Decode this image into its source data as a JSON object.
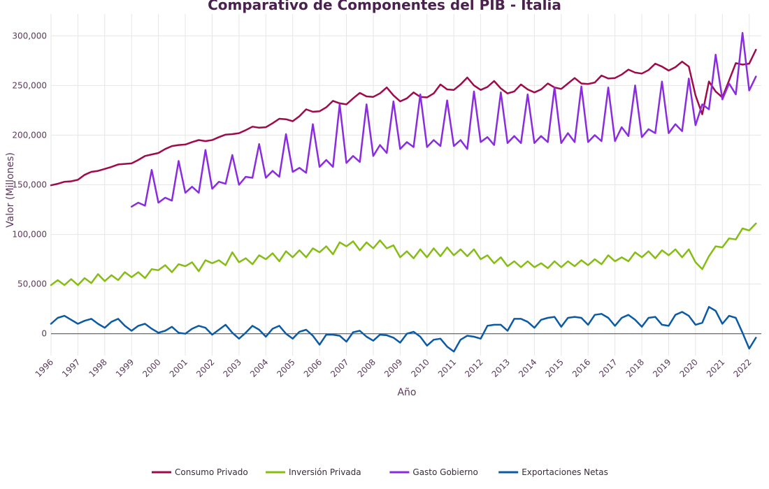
{
  "chart_data": {
    "type": "line",
    "title": "Comparativo de Componentes del PIB - Italia",
    "xlabel": "Año",
    "ylabel": "Valor (Millones)",
    "xlim": [
      1996.0,
      2022.45
    ],
    "ylim": [
      -22000,
      322000
    ],
    "x_ticks": [
      "1996",
      "1997",
      "1998",
      "1999",
      "2000",
      "2001",
      "2002",
      "2003",
      "2004",
      "2005",
      "2006",
      "2007",
      "2008",
      "2009",
      "2010",
      "2011",
      "2012",
      "2013",
      "2014",
      "2015",
      "2016",
      "2017",
      "2018",
      "2019",
      "2020",
      "2021",
      "2022"
    ],
    "y_ticks": [
      0,
      50000,
      100000,
      150000,
      200000,
      250000,
      300000
    ],
    "y_tick_labels": [
      "0",
      "50,000",
      "100,000",
      "150,000",
      "200,000",
      "250,000",
      "300,000"
    ],
    "grid": true,
    "legend_position": "bottom",
    "series": [
      {
        "name": "Consumo Privado",
        "color": "#a0094a",
        "start": 1996.0,
        "step": 0.25,
        "values": [
          149500,
          151000,
          153000,
          153500,
          155000,
          160000,
          163000,
          164000,
          166000,
          168000,
          170500,
          171000,
          171500,
          175000,
          179000,
          180500,
          182000,
          186000,
          189000,
          190000,
          190500,
          193000,
          195000,
          194000,
          195000,
          198000,
          200500,
          201000,
          202000,
          205000,
          208500,
          207500,
          208000,
          212000,
          216500,
          216000,
          214000,
          219000,
          226000,
          223500,
          224000,
          228000,
          234500,
          232000,
          231000,
          237000,
          242500,
          239000,
          238500,
          242000,
          248000,
          240000,
          234000,
          237000,
          243000,
          238500,
          238000,
          242000,
          251000,
          246000,
          245500,
          251000,
          258000,
          250000,
          245500,
          248500,
          254500,
          247000,
          242000,
          244000,
          251000,
          246000,
          243000,
          246000,
          252000,
          248000,
          246500,
          252000,
          257500,
          252000,
          251500,
          253000,
          260000,
          257000,
          257500,
          261000,
          266000,
          263000,
          262000,
          265500,
          272000,
          269000,
          265000,
          268500,
          274000,
          269000,
          240000,
          221000,
          254000,
          244000,
          238000,
          255000,
          272500,
          271000,
          272000,
          286000
        ]
      },
      {
        "name": "Inversión Privada",
        "color": "#85bd12",
        "start": 1996.0,
        "step": 0.25,
        "values": [
          49000,
          54000,
          49000,
          55000,
          49000,
          56000,
          51000,
          60000,
          53000,
          59000,
          54000,
          62000,
          57000,
          62000,
          56000,
          65000,
          64000,
          69000,
          62000,
          70000,
          68000,
          72000,
          63000,
          74000,
          71000,
          74000,
          69000,
          82000,
          72000,
          76000,
          70000,
          79000,
          75000,
          81000,
          73000,
          83000,
          77000,
          84000,
          77000,
          86000,
          82000,
          88000,
          80000,
          92000,
          88000,
          93000,
          84000,
          92000,
          86000,
          94000,
          86000,
          89000,
          77000,
          83000,
          76000,
          85000,
          77000,
          86000,
          78000,
          87000,
          79000,
          85000,
          78000,
          85000,
          75000,
          79000,
          71000,
          77000,
          68000,
          73000,
          67000,
          73000,
          67000,
          71000,
          66000,
          73000,
          67000,
          73000,
          68000,
          74000,
          69000,
          75000,
          70000,
          79000,
          73000,
          77000,
          73000,
          82000,
          77000,
          83000,
          76000,
          84000,
          79000,
          85000,
          77000,
          85000,
          72000,
          65000,
          78000,
          88000,
          87000,
          96000,
          95000,
          106000,
          104000,
          111000
        ]
      },
      {
        "name": "Gasto Gobierno",
        "color": "#8a2be2",
        "start": 1999.0,
        "step": 0.25,
        "values": [
          128000,
          132000,
          129000,
          165000,
          132000,
          137000,
          134000,
          174000,
          142000,
          148000,
          142000,
          185000,
          146000,
          153000,
          151000,
          180000,
          150000,
          158000,
          157000,
          191000,
          157000,
          164000,
          158000,
          201000,
          163000,
          167000,
          162000,
          211000,
          168000,
          175000,
          168000,
          231000,
          172000,
          179000,
          173000,
          231000,
          179000,
          190000,
          182000,
          234000,
          186000,
          193000,
          188000,
          241000,
          188000,
          195000,
          189000,
          235000,
          189000,
          195000,
          186000,
          244000,
          193000,
          198000,
          190000,
          243000,
          192000,
          199000,
          192000,
          241000,
          192000,
          199000,
          193000,
          248000,
          192000,
          202000,
          193000,
          249000,
          193000,
          200000,
          194000,
          248000,
          194000,
          208000,
          199000,
          250000,
          198000,
          206000,
          202000,
          254000,
          202000,
          211000,
          204000,
          257000,
          210000,
          231000,
          226000,
          281000,
          236000,
          252000,
          241000,
          303000,
          245000,
          259000
        ]
      },
      {
        "name": "Exportaciones Netas",
        "color": "#0b5aa6",
        "start": 1996.0,
        "step": 0.25,
        "values": [
          10000,
          16000,
          18000,
          14000,
          10000,
          13000,
          15000,
          10000,
          6000,
          12000,
          15000,
          8000,
          3000,
          8000,
          10000,
          5000,
          1000,
          3000,
          7000,
          1000,
          0,
          5000,
          8000,
          6000,
          -1000,
          4000,
          9000,
          1000,
          -5000,
          1000,
          8000,
          4000,
          -3000,
          5000,
          8000,
          0,
          -5000,
          2000,
          4000,
          -2000,
          -11000,
          -1000,
          -1000,
          -2000,
          -8000,
          1500,
          3000,
          -3000,
          -7000,
          -1000,
          -1500,
          -4000,
          -9000,
          0,
          2000,
          -3000,
          -12000,
          -6000,
          -5000,
          -13000,
          -18000,
          -6000,
          -2000,
          -3000,
          -5000,
          8000,
          9000,
          9000,
          3000,
          15000,
          15000,
          12000,
          6000,
          14000,
          16000,
          17000,
          7000,
          16000,
          17000,
          16000,
          9000,
          19000,
          20000,
          16000,
          8000,
          16000,
          19000,
          14000,
          7000,
          16000,
          17000,
          9000,
          8000,
          19000,
          22000,
          18000,
          9000,
          11000,
          27000,
          23000,
          10000,
          18000,
          16000,
          1000,
          -15000,
          -4000
        ]
      }
    ]
  }
}
